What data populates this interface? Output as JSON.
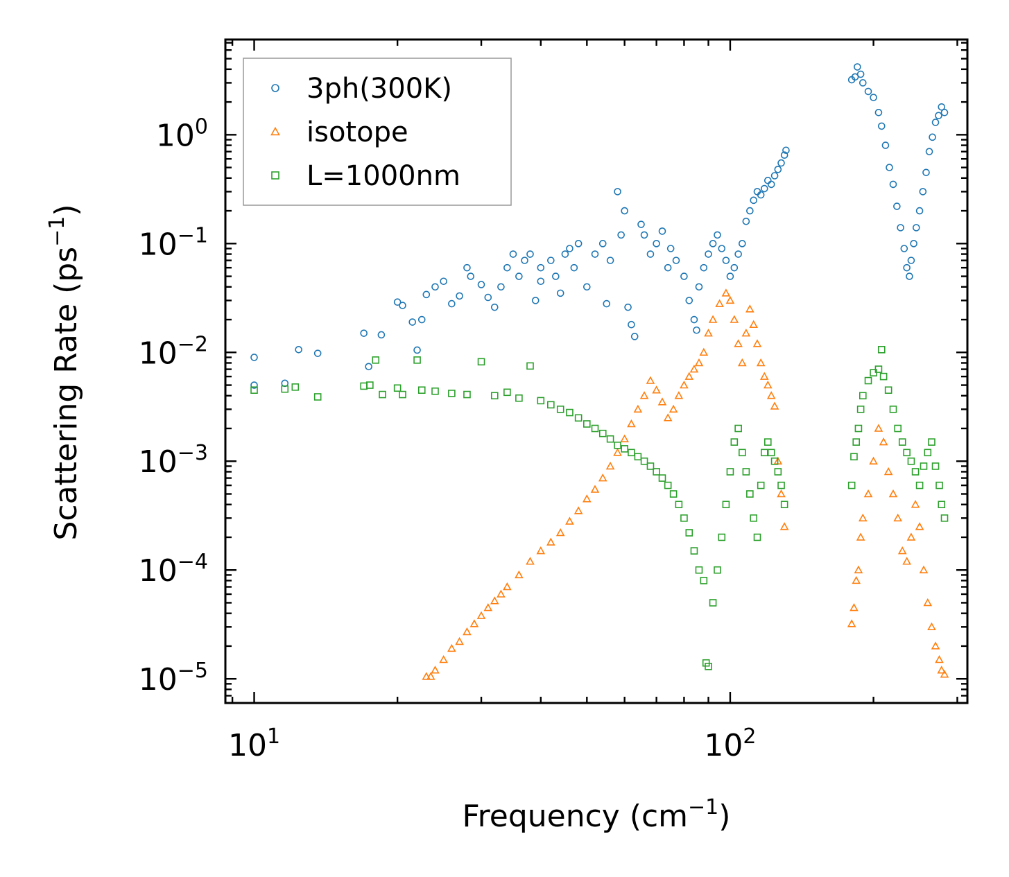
{
  "chart_data": {
    "type": "scatter",
    "xscale": "log",
    "yscale": "log",
    "xlabel": "Frequency (cm",
    "xlabel_sup": "−1",
    "xlabel_end": ")",
    "ylabel": "Scattering Rate (ps",
    "ylabel_sup": "−1",
    "ylabel_end": ")",
    "xlim": [
      8.7,
      315
    ],
    "ylim": [
      6e-06,
      7.5
    ],
    "xticks": [
      {
        "value": 10,
        "base": "10",
        "exp": "1"
      },
      {
        "value": 100,
        "base": "10",
        "exp": "2"
      }
    ],
    "yticks": [
      {
        "value": 1,
        "base": "10",
        "exp": "0"
      },
      {
        "value": 0.1,
        "base": "10",
        "exp": "−1"
      },
      {
        "value": 0.01,
        "base": "10",
        "exp": "−2"
      },
      {
        "value": 0.001,
        "base": "10",
        "exp": "−3"
      },
      {
        "value": 0.0001,
        "base": "10",
        "exp": "−4"
      },
      {
        "value": 1e-05,
        "base": "10",
        "exp": "−5"
      }
    ],
    "legend_position": "top-left",
    "series": [
      {
        "name": "3ph(300K)",
        "marker": "circle",
        "color": "#1f77b4",
        "points": [
          [
            10,
            0.009
          ],
          [
            10,
            0.005
          ],
          [
            11.6,
            0.0052
          ],
          [
            12.4,
            0.0106
          ],
          [
            13.6,
            0.0098
          ],
          [
            17,
            0.015
          ],
          [
            17.4,
            0.0074
          ],
          [
            18.5,
            0.0145
          ],
          [
            20,
            0.029
          ],
          [
            20.5,
            0.027
          ],
          [
            21.5,
            0.019
          ],
          [
            22,
            0.0105
          ],
          [
            22.5,
            0.02
          ],
          [
            23,
            0.034
          ],
          [
            24,
            0.04
          ],
          [
            25,
            0.045
          ],
          [
            26,
            0.028
          ],
          [
            27,
            0.033
          ],
          [
            28,
            0.06
          ],
          [
            28.5,
            0.05
          ],
          [
            30,
            0.042
          ],
          [
            31,
            0.032
          ],
          [
            32,
            0.026
          ],
          [
            33,
            0.04
          ],
          [
            34,
            0.06
          ],
          [
            35,
            0.08
          ],
          [
            36,
            0.05
          ],
          [
            37,
            0.07
          ],
          [
            38,
            0.08
          ],
          [
            39,
            0.03
          ],
          [
            40,
            0.045
          ],
          [
            40,
            0.06
          ],
          [
            42,
            0.07
          ],
          [
            43,
            0.05
          ],
          [
            44,
            0.035
          ],
          [
            45,
            0.08
          ],
          [
            46,
            0.09
          ],
          [
            47,
            0.06
          ],
          [
            48,
            0.1
          ],
          [
            50,
            0.04
          ],
          [
            52,
            0.08
          ],
          [
            54,
            0.1
          ],
          [
            55,
            0.028
          ],
          [
            56,
            0.07
          ],
          [
            58,
            0.3
          ],
          [
            59,
            0.12
          ],
          [
            60,
            0.2
          ],
          [
            61,
            0.026
          ],
          [
            62,
            0.018
          ],
          [
            63,
            0.014
          ],
          [
            65,
            0.15
          ],
          [
            66,
            0.12
          ],
          [
            68,
            0.08
          ],
          [
            70,
            0.1
          ],
          [
            72,
            0.13
          ],
          [
            74,
            0.06
          ],
          [
            75,
            0.09
          ],
          [
            77,
            0.07
          ],
          [
            80,
            0.05
          ],
          [
            82,
            0.03
          ],
          [
            84,
            0.02
          ],
          [
            85,
            0.016
          ],
          [
            86,
            0.04
          ],
          [
            88,
            0.06
          ],
          [
            90,
            0.08
          ],
          [
            92,
            0.1
          ],
          [
            94,
            0.12
          ],
          [
            96,
            0.09
          ],
          [
            98,
            0.07
          ],
          [
            100,
            0.05
          ],
          [
            102,
            0.06
          ],
          [
            104,
            0.08
          ],
          [
            106,
            0.1
          ],
          [
            108,
            0.16
          ],
          [
            110,
            0.2
          ],
          [
            112,
            0.25
          ],
          [
            114,
            0.3
          ],
          [
            116,
            0.28
          ],
          [
            118,
            0.32
          ],
          [
            120,
            0.38
          ],
          [
            122,
            0.35
          ],
          [
            124,
            0.42
          ],
          [
            126,
            0.48
          ],
          [
            128,
            0.55
          ],
          [
            130,
            0.65
          ],
          [
            131,
            0.72
          ],
          [
            180,
            3.2
          ],
          [
            183,
            3.4
          ],
          [
            185,
            4.2
          ],
          [
            188,
            3.6
          ],
          [
            190,
            3.0
          ],
          [
            195,
            2.5
          ],
          [
            200,
            2.2
          ],
          [
            205,
            1.6
          ],
          [
            208,
            1.2
          ],
          [
            212,
            0.8
          ],
          [
            216,
            0.5
          ],
          [
            220,
            0.35
          ],
          [
            224,
            0.22
          ],
          [
            228,
            0.14
          ],
          [
            232,
            0.09
          ],
          [
            235,
            0.06
          ],
          [
            238,
            0.05
          ],
          [
            240,
            0.07
          ],
          [
            243,
            0.1
          ],
          [
            246,
            0.14
          ],
          [
            250,
            0.2
          ],
          [
            254,
            0.3
          ],
          [
            258,
            0.45
          ],
          [
            262,
            0.7
          ],
          [
            266,
            0.95
          ],
          [
            270,
            1.3
          ],
          [
            274,
            1.5
          ],
          [
            278,
            1.8
          ],
          [
            282,
            1.6
          ]
        ]
      },
      {
        "name": "isotope",
        "marker": "triangle",
        "color": "#ff7f0e",
        "points": [
          [
            23,
            1.05e-05
          ],
          [
            23.5,
            1.05e-05
          ],
          [
            24,
            1.2e-05
          ],
          [
            25,
            1.5e-05
          ],
          [
            26,
            1.9e-05
          ],
          [
            27,
            2.2e-05
          ],
          [
            28,
            2.7e-05
          ],
          [
            29,
            3.2e-05
          ],
          [
            30,
            3.8e-05
          ],
          [
            31,
            4.5e-05
          ],
          [
            32,
            5.2e-05
          ],
          [
            33,
            6e-05
          ],
          [
            34,
            7e-05
          ],
          [
            36,
            9e-05
          ],
          [
            38,
            0.00012
          ],
          [
            40,
            0.00015
          ],
          [
            42,
            0.00018
          ],
          [
            44,
            0.00022
          ],
          [
            46,
            0.00028
          ],
          [
            48,
            0.00035
          ],
          [
            50,
            0.00045
          ],
          [
            52,
            0.00055
          ],
          [
            54,
            0.0007
          ],
          [
            56,
            0.0009
          ],
          [
            58,
            0.0012
          ],
          [
            60,
            0.0016
          ],
          [
            62,
            0.0022
          ],
          [
            64,
            0.003
          ],
          [
            66,
            0.004
          ],
          [
            68,
            0.0055
          ],
          [
            70,
            0.0045
          ],
          [
            72,
            0.0035
          ],
          [
            74,
            0.0025
          ],
          [
            76,
            0.003
          ],
          [
            78,
            0.004
          ],
          [
            80,
            0.005
          ],
          [
            82,
            0.006
          ],
          [
            84,
            0.007
          ],
          [
            86,
            0.008
          ],
          [
            88,
            0.01
          ],
          [
            90,
            0.015
          ],
          [
            92,
            0.02
          ],
          [
            95,
            0.028
          ],
          [
            98,
            0.035
          ],
          [
            100,
            0.03
          ],
          [
            102,
            0.02
          ],
          [
            104,
            0.012
          ],
          [
            106,
            0.008
          ],
          [
            108,
            0.015
          ],
          [
            110,
            0.025
          ],
          [
            112,
            0.018
          ],
          [
            114,
            0.012
          ],
          [
            116,
            0.008
          ],
          [
            118,
            0.006
          ],
          [
            120,
            0.005
          ],
          [
            122,
            0.004
          ],
          [
            124,
            0.0032
          ],
          [
            126,
            0.001
          ],
          [
            128,
            0.0005
          ],
          [
            130,
            0.00025
          ],
          [
            180,
            3.2e-05
          ],
          [
            182,
            4.5e-05
          ],
          [
            184,
            8e-05
          ],
          [
            186,
            0.0001
          ],
          [
            188,
            0.0002
          ],
          [
            190,
            0.0003
          ],
          [
            195,
            0.0005
          ],
          [
            200,
            0.001
          ],
          [
            205,
            0.002
          ],
          [
            210,
            0.0015
          ],
          [
            215,
            0.0008
          ],
          [
            220,
            0.0005
          ],
          [
            225,
            0.0003
          ],
          [
            230,
            0.00015
          ],
          [
            235,
            0.00012
          ],
          [
            240,
            0.0002
          ],
          [
            245,
            0.0004
          ],
          [
            250,
            0.00025
          ],
          [
            255,
            0.0001
          ],
          [
            260,
            5e-05
          ],
          [
            265,
            3e-05
          ],
          [
            270,
            2e-05
          ],
          [
            275,
            1.5e-05
          ],
          [
            278,
            1.2e-05
          ],
          [
            282,
            1.1e-05
          ]
        ]
      },
      {
        "name": "L=1000nm",
        "marker": "square",
        "color": "#2ca02c",
        "points": [
          [
            10,
            0.0045
          ],
          [
            11.6,
            0.0046
          ],
          [
            12.2,
            0.0048
          ],
          [
            13.6,
            0.0039
          ],
          [
            17,
            0.0049
          ],
          [
            17.5,
            0.005
          ],
          [
            18,
            0.0085
          ],
          [
            18.6,
            0.0041
          ],
          [
            20,
            0.0047
          ],
          [
            20.5,
            0.0041
          ],
          [
            22,
            0.0085
          ],
          [
            22.5,
            0.0045
          ],
          [
            24,
            0.0044
          ],
          [
            26,
            0.0042
          ],
          [
            28,
            0.0041
          ],
          [
            30,
            0.0082
          ],
          [
            32,
            0.004
          ],
          [
            34,
            0.0043
          ],
          [
            36,
            0.0038
          ],
          [
            38,
            0.0075
          ],
          [
            40,
            0.0036
          ],
          [
            42,
            0.0033
          ],
          [
            44,
            0.003
          ],
          [
            46,
            0.0028
          ],
          [
            48,
            0.0025
          ],
          [
            50,
            0.0022
          ],
          [
            52,
            0.002
          ],
          [
            54,
            0.0018
          ],
          [
            56,
            0.0016
          ],
          [
            58,
            0.0014
          ],
          [
            60,
            0.0013
          ],
          [
            62,
            0.0012
          ],
          [
            64,
            0.0011
          ],
          [
            66,
            0.001
          ],
          [
            68,
            0.0009
          ],
          [
            70,
            0.0008
          ],
          [
            72,
            0.0007
          ],
          [
            74,
            0.0006
          ],
          [
            76,
            0.0005
          ],
          [
            78,
            0.0004
          ],
          [
            80,
            0.0003
          ],
          [
            82,
            0.00022
          ],
          [
            84,
            0.00015
          ],
          [
            86,
            0.0001
          ],
          [
            88,
            8e-05
          ],
          [
            89,
            1.4e-05
          ],
          [
            90,
            1.3e-05
          ],
          [
            92,
            5e-05
          ],
          [
            94,
            0.0001
          ],
          [
            96,
            0.0002
          ],
          [
            98,
            0.0004
          ],
          [
            100,
            0.0008
          ],
          [
            102,
            0.0015
          ],
          [
            104,
            0.002
          ],
          [
            106,
            0.0012
          ],
          [
            108,
            0.0008
          ],
          [
            110,
            0.0005
          ],
          [
            112,
            0.0003
          ],
          [
            114,
            0.0002
          ],
          [
            116,
            0.0006
          ],
          [
            118,
            0.0012
          ],
          [
            120,
            0.0015
          ],
          [
            122,
            0.0012
          ],
          [
            124,
            0.001
          ],
          [
            126,
            0.0008
          ],
          [
            128,
            0.0006
          ],
          [
            130,
            0.0004
          ],
          [
            180,
            0.0006
          ],
          [
            182,
            0.0011
          ],
          [
            184,
            0.0015
          ],
          [
            186,
            0.002
          ],
          [
            188,
            0.003
          ],
          [
            190,
            0.004
          ],
          [
            195,
            0.0055
          ],
          [
            200,
            0.0065
          ],
          [
            205,
            0.007
          ],
          [
            208,
            0.0106
          ],
          [
            210,
            0.006
          ],
          [
            215,
            0.0045
          ],
          [
            220,
            0.003
          ],
          [
            225,
            0.002
          ],
          [
            230,
            0.0015
          ],
          [
            235,
            0.0012
          ],
          [
            240,
            0.001
          ],
          [
            245,
            0.0008
          ],
          [
            250,
            0.0006
          ],
          [
            255,
            0.0009
          ],
          [
            260,
            0.0012
          ],
          [
            265,
            0.0015
          ],
          [
            270,
            0.0009
          ],
          [
            275,
            0.0006
          ],
          [
            278,
            0.0004
          ],
          [
            282,
            0.0003
          ]
        ]
      }
    ]
  }
}
